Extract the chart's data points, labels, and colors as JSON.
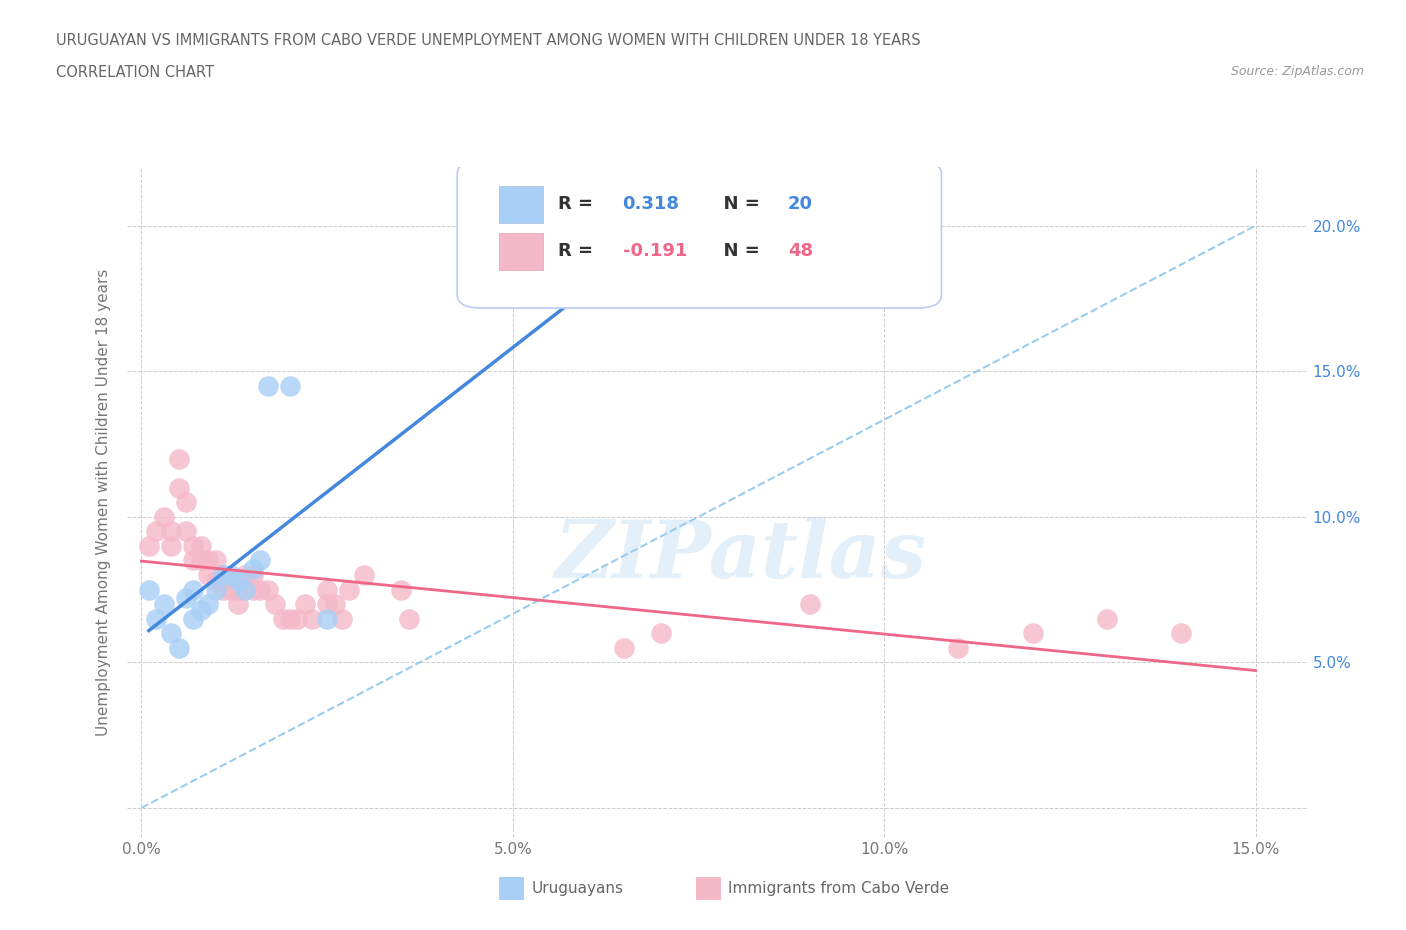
{
  "title_line1": "URUGUAYAN VS IMMIGRANTS FROM CABO VERDE UNEMPLOYMENT AMONG WOMEN WITH CHILDREN UNDER 18 YEARS",
  "title_line2": "CORRELATION CHART",
  "source_text": "Source: ZipAtlas.com",
  "ylabel": "Unemployment Among Women with Children Under 18 years",
  "xlim": [
    -0.002,
    0.157
  ],
  "ylim": [
    -0.01,
    0.22
  ],
  "xticks": [
    0.0,
    0.05,
    0.1,
    0.15
  ],
  "xtick_labels": [
    "0.0%",
    "5.0%",
    "10.0%",
    "15.0%"
  ],
  "yticks": [
    0.0,
    0.05,
    0.1,
    0.15,
    0.2
  ],
  "ytick_labels_left": [
    "",
    "",
    "",
    "",
    ""
  ],
  "ytick_labels_right": [
    "5.0%",
    "10.0%",
    "15.0%",
    "20.0%"
  ],
  "yticks_right": [
    0.05,
    0.1,
    0.15,
    0.2
  ],
  "uruguayan_color": "#a8cff5",
  "caboverde_color": "#f5b8c8",
  "uruguayan_line_color": "#4488dd",
  "caboverde_line_color": "#ee6688",
  "trendline_dashed_color": "#99ccee",
  "legend_box_color": "#e8f0fc",
  "watermark": "ZIPatlas",
  "uruguayan_x": [
    0.001,
    0.002,
    0.003,
    0.004,
    0.005,
    0.006,
    0.007,
    0.007,
    0.008,
    0.009,
    0.01,
    0.011,
    0.012,
    0.013,
    0.014,
    0.015,
    0.016,
    0.017,
    0.02,
    0.025
  ],
  "uruguayan_y": [
    0.075,
    0.065,
    0.07,
    0.06,
    0.055,
    0.072,
    0.075,
    0.065,
    0.068,
    0.07,
    0.075,
    0.08,
    0.08,
    0.078,
    0.075,
    0.082,
    0.085,
    0.145,
    0.145,
    0.065
  ],
  "caboverde_x": [
    0.001,
    0.002,
    0.003,
    0.004,
    0.004,
    0.005,
    0.005,
    0.006,
    0.006,
    0.007,
    0.007,
    0.008,
    0.008,
    0.009,
    0.009,
    0.01,
    0.01,
    0.011,
    0.011,
    0.012,
    0.013,
    0.013,
    0.014,
    0.015,
    0.015,
    0.016,
    0.017,
    0.018,
    0.019,
    0.02,
    0.021,
    0.022,
    0.023,
    0.025,
    0.025,
    0.026,
    0.027,
    0.028,
    0.03,
    0.035,
    0.036,
    0.065,
    0.07,
    0.09,
    0.11,
    0.12,
    0.13,
    0.14
  ],
  "caboverde_y": [
    0.09,
    0.095,
    0.1,
    0.09,
    0.095,
    0.11,
    0.12,
    0.095,
    0.105,
    0.09,
    0.085,
    0.085,
    0.09,
    0.08,
    0.085,
    0.078,
    0.085,
    0.075,
    0.08,
    0.075,
    0.07,
    0.075,
    0.08,
    0.08,
    0.075,
    0.075,
    0.075,
    0.07,
    0.065,
    0.065,
    0.065,
    0.07,
    0.065,
    0.07,
    0.075,
    0.07,
    0.065,
    0.075,
    0.08,
    0.075,
    0.065,
    0.055,
    0.06,
    0.07,
    0.055,
    0.06,
    0.065,
    0.06
  ],
  "background_color": "#ffffff",
  "grid_color": "#cccccc"
}
